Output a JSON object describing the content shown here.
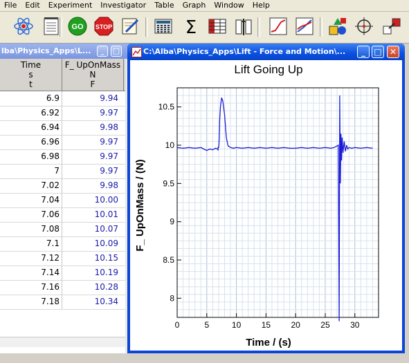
{
  "menu": [
    "File",
    "Edit",
    "Experiment",
    "Investigator",
    "Table",
    "Graph",
    "Window",
    "Help"
  ],
  "toolbar": [
    {
      "icon": "atom-icon"
    },
    {
      "icon": "notepad-icon"
    },
    {
      "icon": "go-icon",
      "label": "GO",
      "color": "#20a020"
    },
    {
      "icon": "stop-icon",
      "label": "STOP",
      "color": "#d82020"
    },
    {
      "icon": "edit-note-icon"
    },
    {
      "icon": "calculator-icon"
    },
    {
      "icon": "sigma-icon",
      "label": "Σ"
    },
    {
      "icon": "table-icon"
    },
    {
      "icon": "columns-icon"
    },
    {
      "icon": "graph-icon"
    },
    {
      "icon": "graph-fit-icon"
    },
    {
      "icon": "shapes-icon"
    },
    {
      "icon": "crosshair-icon"
    },
    {
      "icon": "link-icon"
    }
  ],
  "table_window": {
    "title": "lba\\Physics_Apps\\L...",
    "columns": [
      {
        "name": "Time",
        "unit": "s",
        "symbol": "t"
      },
      {
        "name": "F_ UpOnMass",
        "unit": "N",
        "symbol": "F"
      }
    ],
    "rows": [
      [
        "6.9",
        "9.94"
      ],
      [
        "6.92",
        "9.97"
      ],
      [
        "6.94",
        "9.98"
      ],
      [
        "6.96",
        "9.97"
      ],
      [
        "6.98",
        "9.97"
      ],
      [
        "7",
        "9.97"
      ],
      [
        "7.02",
        "9.98"
      ],
      [
        "7.04",
        "10.00"
      ],
      [
        "7.06",
        "10.01"
      ],
      [
        "7.08",
        "10.07"
      ],
      [
        "7.1",
        "10.09"
      ],
      [
        "7.12",
        "10.15"
      ],
      [
        "7.14",
        "10.19"
      ],
      [
        "7.16",
        "10.28"
      ],
      [
        "7.18",
        "10.34"
      ]
    ]
  },
  "graph_window": {
    "title": "C:\\Alba\\Physics_Apps\\Lift - Force and Motion\\..."
  },
  "chart_data": {
    "type": "line",
    "title": "Lift Going Up",
    "xlabel": "Time / (s)",
    "ylabel": "F_ UpOnMass / (N)",
    "xlim": [
      0,
      34
    ],
    "ylim": [
      7.75,
      10.75
    ],
    "x_ticks": [
      0,
      5,
      10,
      15,
      20,
      25,
      30
    ],
    "y_ticks": [
      8,
      8.5,
      9,
      9.5,
      10,
      10.5
    ],
    "grid": true,
    "color": "#1a1ad8",
    "series": [
      {
        "x": [
          0,
          1,
          2,
          3,
          4,
          4.5,
          5,
          5.5,
          6,
          6.5,
          6.8,
          6.9,
          6.92,
          6.94,
          6.96,
          6.98,
          7,
          7.02,
          7.04,
          7.06,
          7.08,
          7.1,
          7.12,
          7.14,
          7.16,
          7.18,
          7.3,
          7.5,
          7.7,
          8,
          8.3,
          8.6,
          9,
          9.5,
          10,
          11,
          12,
          13,
          14,
          15,
          16,
          17,
          18,
          19,
          20,
          21,
          22,
          23,
          24,
          25,
          26,
          26.5,
          27,
          27.2,
          27.35,
          27.45,
          27.55,
          27.65,
          27.75,
          27.85,
          28,
          28.2,
          28.4,
          28.6,
          28.8,
          29,
          29.5,
          30,
          31,
          32,
          33
        ],
        "y": [
          9.97,
          9.96,
          9.97,
          9.96,
          9.97,
          9.95,
          9.93,
          9.95,
          9.94,
          9.96,
          9.95,
          9.94,
          9.97,
          9.98,
          9.97,
          9.97,
          9.97,
          9.98,
          10.0,
          10.01,
          10.07,
          10.09,
          10.15,
          10.19,
          10.28,
          10.34,
          10.5,
          10.62,
          10.58,
          10.4,
          10.1,
          9.99,
          9.97,
          9.96,
          9.97,
          9.96,
          9.97,
          9.96,
          9.97,
          9.96,
          9.97,
          9.96,
          9.97,
          9.96,
          9.96,
          9.97,
          9.96,
          9.97,
          9.96,
          9.97,
          9.96,
          9.97,
          9.99,
          10.0,
          7.7,
          10.65,
          9.5,
          10.15,
          9.8,
          10.1,
          9.9,
          10.05,
          9.92,
          10.0,
          9.95,
          9.97,
          9.96,
          9.97,
          9.96,
          9.97,
          9.96
        ]
      }
    ]
  }
}
